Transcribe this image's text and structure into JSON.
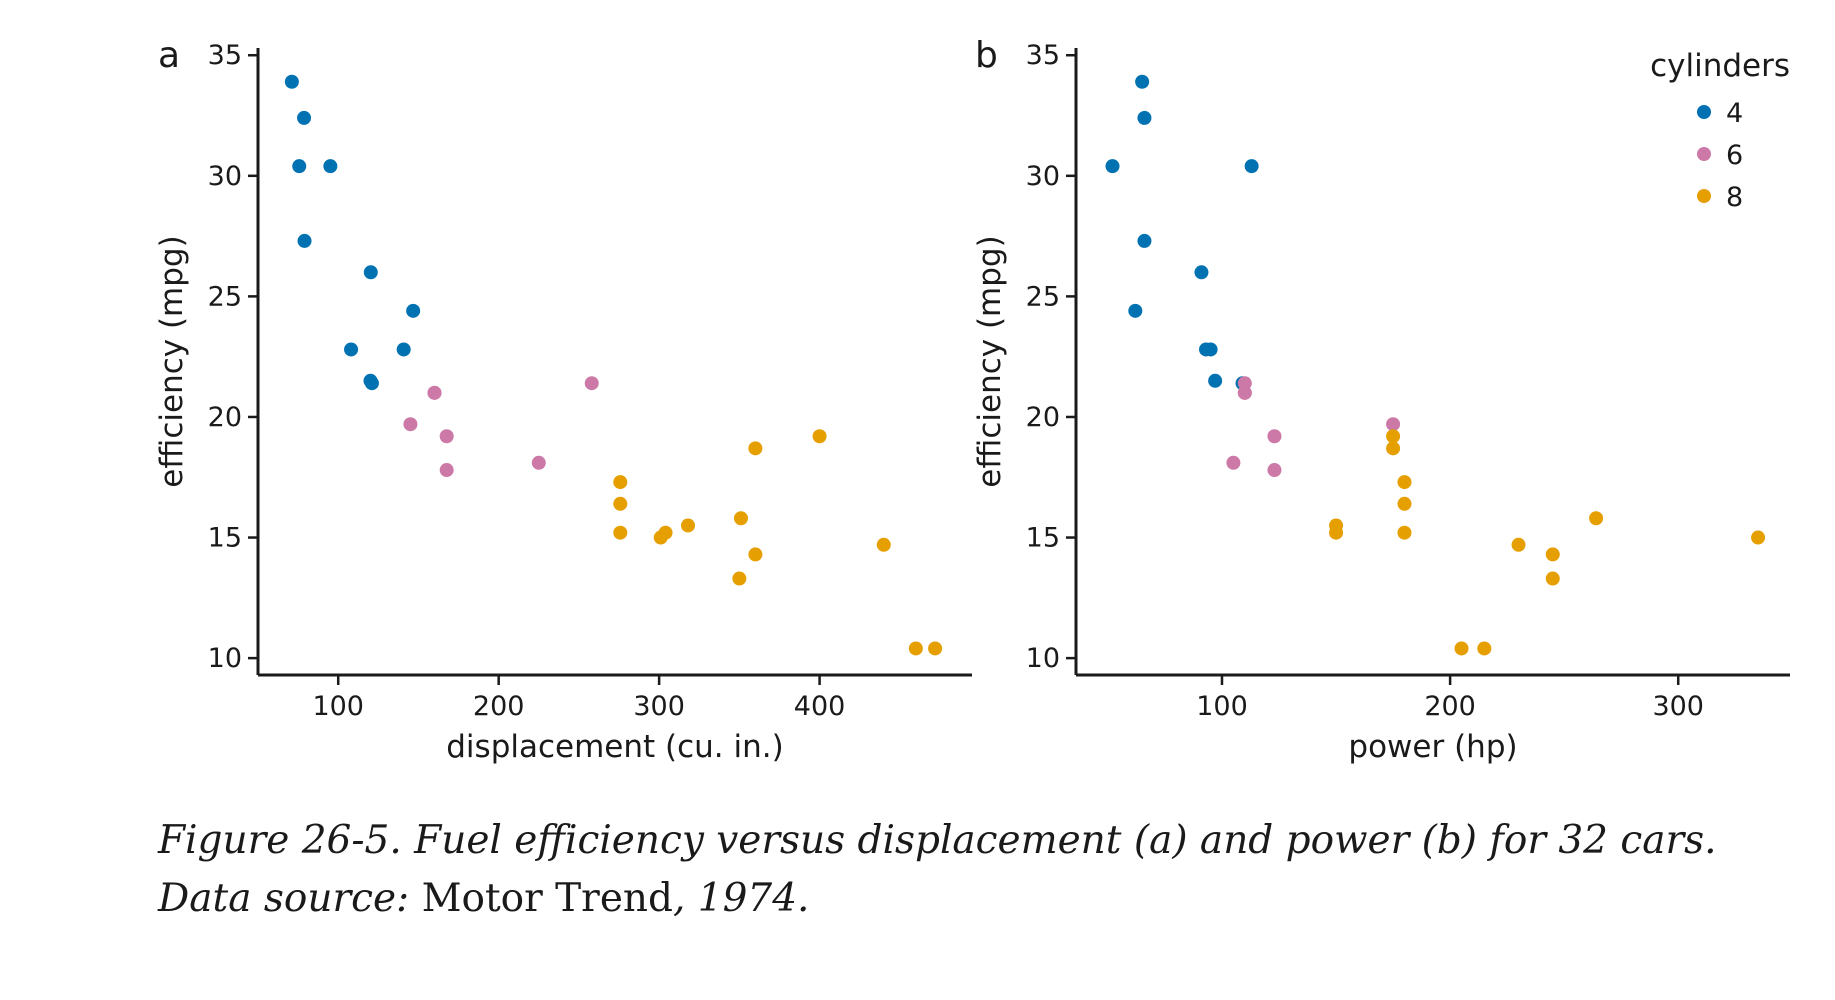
{
  "chart_data": [
    {
      "type": "scatter",
      "panel_label": "a",
      "xlabel": "displacement (cu. in.)",
      "ylabel": "efficiency (mpg)",
      "xlim": [
        50,
        495
      ],
      "ylim": [
        9.3,
        35.3
      ],
      "xticks": [
        100,
        200,
        300,
        400
      ],
      "yticks": [
        10,
        15,
        20,
        25,
        30,
        35
      ],
      "grid": false,
      "series": [
        {
          "key": "4",
          "color": "#0072B2",
          "points": [
            [
              71.1,
              33.9
            ],
            [
              75.7,
              30.4
            ],
            [
              78.7,
              32.4
            ],
            [
              79,
              27.3
            ],
            [
              95.1,
              30.4
            ],
            [
              108,
              22.8
            ],
            [
              120.1,
              21.5
            ],
            [
              120.3,
              26
            ],
            [
              121,
              21.4
            ],
            [
              140.8,
              22.8
            ],
            [
              146.7,
              24.4
            ]
          ]
        },
        {
          "key": "6",
          "color": "#CC79A7",
          "points": [
            [
              145,
              19.7
            ],
            [
              160,
              21
            ],
            [
              160,
              21
            ],
            [
              167.6,
              19.2
            ],
            [
              167.6,
              17.8
            ],
            [
              225,
              18.1
            ],
            [
              258,
              21.4
            ]
          ]
        },
        {
          "key": "8",
          "color": "#E69F00",
          "points": [
            [
              275.8,
              16.4
            ],
            [
              275.8,
              17.3
            ],
            [
              275.8,
              15.2
            ],
            [
              301,
              15
            ],
            [
              304,
              15.2
            ],
            [
              318,
              15.5
            ],
            [
              350,
              13.3
            ],
            [
              351,
              15.8
            ],
            [
              360,
              18.7
            ],
            [
              360,
              14.3
            ],
            [
              400,
              19.2
            ],
            [
              440,
              14.7
            ],
            [
              460,
              10.4
            ],
            [
              472,
              10.4
            ]
          ]
        }
      ]
    },
    {
      "type": "scatter",
      "panel_label": "b",
      "xlabel": "power (hp)",
      "ylabel": "efficiency (mpg)",
      "xlim": [
        36,
        349
      ],
      "ylim": [
        9.3,
        35.3
      ],
      "xticks": [
        100,
        200,
        300
      ],
      "yticks": [
        10,
        15,
        20,
        25,
        30,
        35
      ],
      "grid": false,
      "legend": {
        "title": "cylinders",
        "position": "top-right",
        "entries": [
          {
            "label": "4",
            "color": "#0072B2"
          },
          {
            "label": "6",
            "color": "#CC79A7"
          },
          {
            "label": "8",
            "color": "#E69F00"
          }
        ]
      },
      "series": [
        {
          "key": "4",
          "color": "#0072B2",
          "points": [
            [
              52,
              30.4
            ],
            [
              62,
              24.4
            ],
            [
              65,
              33.9
            ],
            [
              66,
              32.4
            ],
            [
              66,
              27.3
            ],
            [
              91,
              26
            ],
            [
              93,
              22.8
            ],
            [
              95,
              22.8
            ],
            [
              97,
              21.5
            ],
            [
              109,
              21.4
            ],
            [
              113,
              30.4
            ]
          ]
        },
        {
          "key": "6",
          "color": "#CC79A7",
          "points": [
            [
              105,
              18.1
            ],
            [
              110,
              21
            ],
            [
              110,
              21
            ],
            [
              110,
              21.4
            ],
            [
              123,
              19.2
            ],
            [
              123,
              17.8
            ],
            [
              175,
              19.7
            ]
          ]
        },
        {
          "key": "8",
          "color": "#E69F00",
          "points": [
            [
              150,
              15.5
            ],
            [
              150,
              15.2
            ],
            [
              175,
              18.7
            ],
            [
              175,
              19.2
            ],
            [
              180,
              16.4
            ],
            [
              180,
              17.3
            ],
            [
              180,
              15.2
            ],
            [
              205,
              10.4
            ],
            [
              215,
              10.4
            ],
            [
              230,
              14.7
            ],
            [
              245,
              14.3
            ],
            [
              245,
              13.3
            ],
            [
              264,
              15.8
            ],
            [
              335,
              15
            ]
          ]
        }
      ]
    }
  ],
  "caption": {
    "part1": "Figure 26-5. Fuel efficiency versus displacement (a) and power (b) for 32 cars. Data source: ",
    "part2": "Motor Trend",
    "part3": ", 1974."
  }
}
